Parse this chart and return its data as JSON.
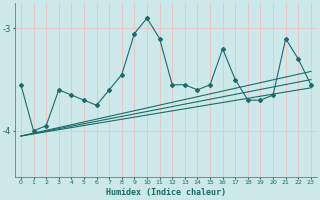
{
  "xlabel": "Humidex (Indice chaleur)",
  "ylabel": "",
  "xlim": [
    -0.5,
    23.5
  ],
  "ylim": [
    -4.45,
    -2.75
  ],
  "yticks": [
    -4,
    -3
  ],
  "xticks": [
    0,
    1,
    2,
    3,
    4,
    5,
    6,
    7,
    8,
    9,
    10,
    11,
    12,
    13,
    14,
    15,
    16,
    17,
    18,
    19,
    20,
    21,
    22,
    23
  ],
  "background_color": "#cce8e8",
  "line_color": "#1a6b6b",
  "grid_color": "#e8c8c8",
  "main_series": [
    0,
    1,
    2,
    3,
    4,
    5,
    6,
    7,
    8,
    9,
    10,
    11,
    12,
    13,
    14,
    15,
    16,
    17,
    18,
    19,
    20,
    21,
    22,
    23
  ],
  "main_y": [
    -3.55,
    -4.0,
    -3.95,
    -3.6,
    -3.65,
    -3.7,
    -3.75,
    -3.6,
    -3.45,
    -3.05,
    -2.9,
    -3.1,
    -3.55,
    -3.55,
    -3.6,
    -3.55,
    -3.2,
    -3.5,
    -3.7,
    -3.7,
    -3.65,
    -3.1,
    -3.3,
    -3.55
  ],
  "reg_lines": [
    {
      "x0": 0,
      "y0": -4.05,
      "x1": 23,
      "y1": -3.42
    },
    {
      "x0": 0,
      "y0": -4.05,
      "x1": 23,
      "y1": -3.5
    },
    {
      "x0": 0,
      "y0": -4.05,
      "x1": 23,
      "y1": -3.58
    }
  ]
}
